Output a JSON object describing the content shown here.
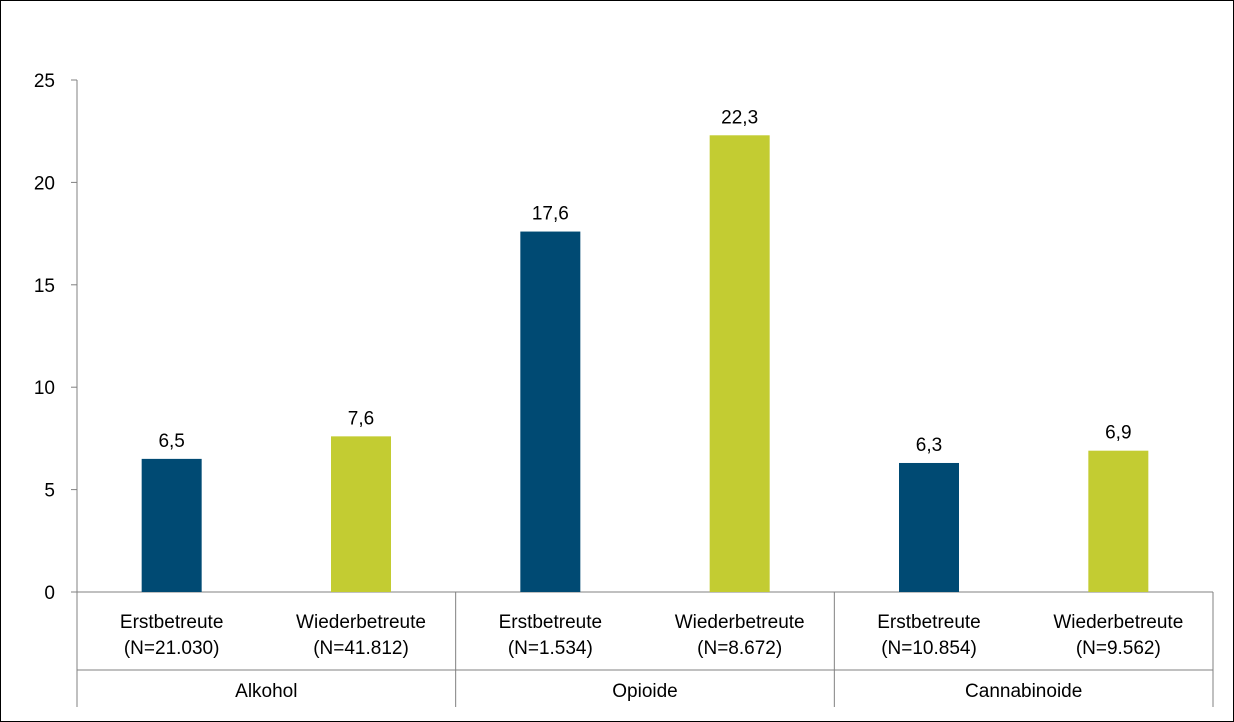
{
  "chart_data": {
    "type": "bar",
    "groups": [
      {
        "label": "Alkohol",
        "bars": [
          {
            "label_line1": "Erstbetreute",
            "label_line2": "(N=21.030)",
            "value": 6.5,
            "value_label": "6,5",
            "series": "Erstbetreute"
          },
          {
            "label_line1": "Wiederbetreute",
            "label_line2": "(N=41.812)",
            "value": 7.6,
            "value_label": "7,6",
            "series": "Wiederbetreute"
          }
        ]
      },
      {
        "label": "Opioide",
        "bars": [
          {
            "label_line1": "Erstbetreute",
            "label_line2": "(N=1.534)",
            "value": 17.6,
            "value_label": "17,6",
            "series": "Erstbetreute"
          },
          {
            "label_line1": "Wiederbetreute",
            "label_line2": "(N=8.672)",
            "value": 22.3,
            "value_label": "22,3",
            "series": "Wiederbetreute"
          }
        ]
      },
      {
        "label": "Cannabinoide",
        "bars": [
          {
            "label_line1": "Erstbetreute",
            "label_line2": "(N=10.854)",
            "value": 6.3,
            "value_label": "6,3",
            "series": "Erstbetreute"
          },
          {
            "label_line1": "Wiederbetreute",
            "label_line2": "(N=9.562)",
            "value": 6.9,
            "value_label": "6,9",
            "series": "Wiederbetreute"
          }
        ]
      }
    ],
    "ylim": [
      0,
      25
    ],
    "yticks": [
      0,
      5,
      10,
      15,
      20,
      25
    ],
    "grid": false,
    "colors": {
      "Erstbetreute": "#004a73",
      "Wiederbetreute": "#c3cc32"
    }
  }
}
